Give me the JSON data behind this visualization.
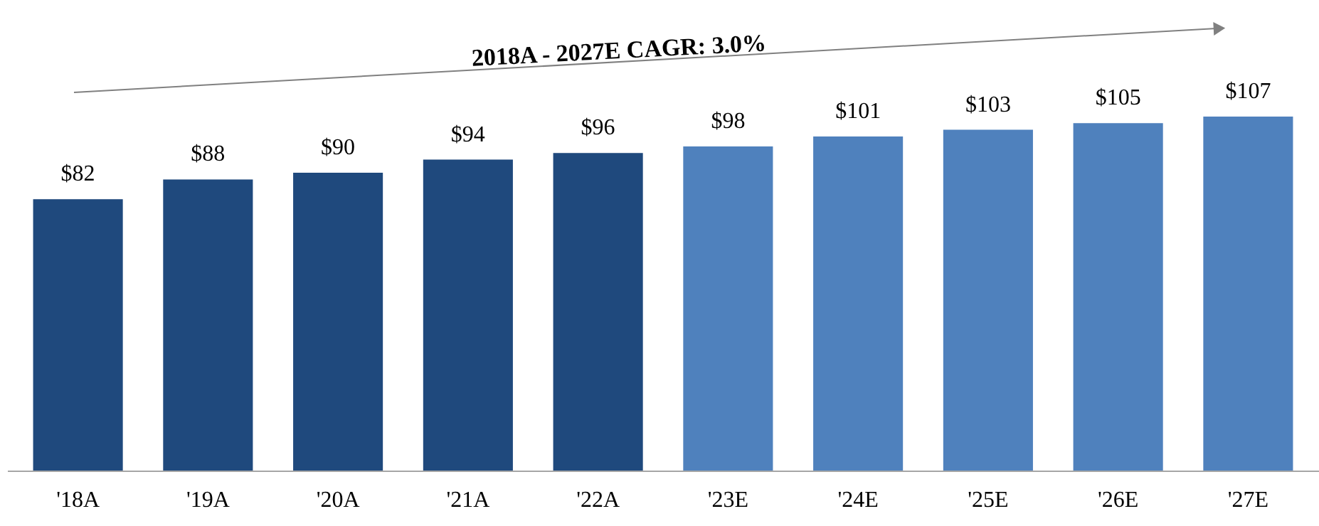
{
  "chart_data": {
    "type": "bar",
    "categories": [
      "'18A",
      "'19A",
      "'20A",
      "'21A",
      "'22A",
      "'23E",
      "'24E",
      "'25E",
      "'26E",
      "'27E"
    ],
    "values": [
      82,
      88,
      90,
      94,
      96,
      98,
      101,
      103,
      105,
      107
    ],
    "colors": [
      "#1f497d",
      "#1f497d",
      "#1f497d",
      "#1f497d",
      "#1f497d",
      "#4f81bd",
      "#4f81bd",
      "#4f81bd",
      "#4f81bd",
      "#4f81bd"
    ],
    "value_labels": [
      "$82",
      "$88",
      "$90",
      "$94",
      "$96",
      "$98",
      "$101",
      "$103",
      "$105",
      "$107"
    ],
    "annotations": [
      "2018A - 2027E CAGR: 3.0%"
    ],
    "grid": false
  }
}
